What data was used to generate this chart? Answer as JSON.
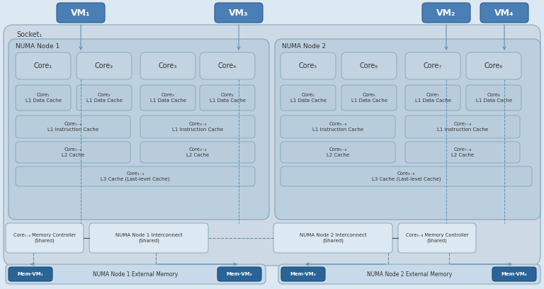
{
  "fig_w": 7.68,
  "fig_h": 4.08,
  "dpi": 100,
  "bg_color": "#dce8f2",
  "socket_bg": "#cdd9e5",
  "socket_border": "#9ab0c4",
  "numa_bg": "#bccfde",
  "numa_border": "#8aaabb",
  "core_bg": "#c2d3e2",
  "core_border": "#8aaabb",
  "cache_bg": "#b8ccdc",
  "cache_border": "#8aaabb",
  "interconnect_bg": "#dce8f2",
  "interconnect_border": "#8aaabb",
  "mem_ctrl_bg": "#dce8f2",
  "mem_ctrl_border": "#8aaabb",
  "ext_mem_bg": "#c8daea",
  "ext_mem_border": "#8aaabb",
  "mem_vm_bg": "#2a6496",
  "mem_vm_border": "#1a4a76",
  "vm_bg": "#4a7fb5",
  "vm_border": "#2a5a8a",
  "arrow_color": "#6090b0",
  "dashed_color": "#6090b0",
  "solid_color": "#405060",
  "text_dark": "#333333",
  "text_white": "#ffffff",
  "socket_label": "Socket₁",
  "numa1_label": "NUMA Node 1",
  "numa2_label": "NUMA Node 2",
  "vm_labels": [
    "VM₁",
    "VM₃",
    "VM₂",
    "VM₄"
  ],
  "core1_labels": [
    "Core₁",
    "Core₂",
    "Core₃",
    "Core₄"
  ],
  "core2_labels": [
    "Core₅",
    "Core₆",
    "Core₇",
    "Core₈"
  ],
  "l1d1_labels": [
    "Core₁\nL1 Data Cache",
    "Core₂\nL1 Data Cache",
    "Core₃\nL1 Data Cache",
    "Core₄\nL1 Data Cache"
  ],
  "l1d2_labels": [
    "Core₅\nL1 Data Cache",
    "Core₆\nL1 Data Cache",
    "Core₇\nL1 Data Cache",
    "Core₈\nL1 Data Cache"
  ],
  "l1i1_labels": [
    "Core₁₋₂\nL1 Instruction Cache",
    "Core₃₋₄\nL1 Instruction Cache"
  ],
  "l1i2_labels": [
    "Core₅₋₆\nL1 Instruction Cache",
    "Core₇₋₈\nL1 Instruction Cache"
  ],
  "l2_1_labels": [
    "Core₁₋₂\nL2 Cache",
    "Core₃₋₄\nL2 Cache"
  ],
  "l2_2_labels": [
    "Core₅₋₆\nL2 Cache",
    "Core₇₋₈\nL2 Cache"
  ],
  "l3_1_label": "Core₁₋₄\nL3 Cache (Last-level Cache)",
  "l3_2_label": "Core₅₋₈\nL3 Cache (Last-level Cache)",
  "mc1_label": "Core₁₋₄ Memory Controller\n(Shared)",
  "mc2_label": "Core₅₋₈ Memory Controller\n(Shared)",
  "ic1_label": "NUMA Node 1 Interconnect\n(Shared)",
  "ic2_label": "NUMA Node 2 Interconnect\n(Shared)",
  "em1_label": "NUMA Node 1 External Memory",
  "em2_label": "NUMA Node 2 External Memory",
  "mvm_labels": [
    "Mem-VM₁",
    "Mem-VM₂",
    "Mem-VM₃",
    "Mem-VM₄"
  ]
}
